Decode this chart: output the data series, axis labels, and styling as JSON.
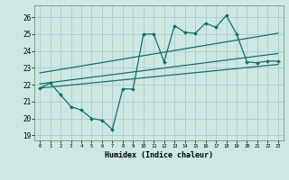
{
  "xlabel": "Humidex (Indice chaleur)",
  "bg_color": "#cce8e4",
  "grid_color": "#aacccc",
  "line_color": "#1a6e62",
  "xlim": [
    -0.5,
    23.5
  ],
  "ylim": [
    18.7,
    26.7
  ],
  "yticks": [
    19,
    20,
    21,
    22,
    23,
    24,
    25,
    26
  ],
  "xticks": [
    0,
    1,
    2,
    3,
    4,
    5,
    6,
    7,
    8,
    9,
    10,
    11,
    12,
    13,
    14,
    15,
    16,
    17,
    18,
    19,
    20,
    21,
    22,
    23
  ],
  "zigzag_x": [
    0,
    1,
    2,
    3,
    4,
    5,
    6,
    7,
    8,
    9,
    10,
    11,
    12,
    13,
    14,
    15,
    16,
    17,
    18,
    19,
    20,
    21,
    22,
    23
  ],
  "zigzag_y": [
    21.8,
    22.1,
    21.4,
    20.7,
    20.5,
    20.0,
    19.9,
    19.35,
    21.75,
    21.75,
    25.0,
    25.0,
    23.35,
    25.5,
    25.1,
    25.05,
    25.65,
    25.4,
    26.1,
    25.0,
    23.35,
    23.3,
    23.4,
    23.4
  ],
  "line1_x": [
    0,
    23
  ],
  "line1_y": [
    21.8,
    23.2
  ],
  "line2_x": [
    0,
    23
  ],
  "line2_y": [
    22.05,
    23.85
  ],
  "line3_x": [
    0,
    23
  ],
  "line3_y": [
    22.7,
    25.05
  ]
}
